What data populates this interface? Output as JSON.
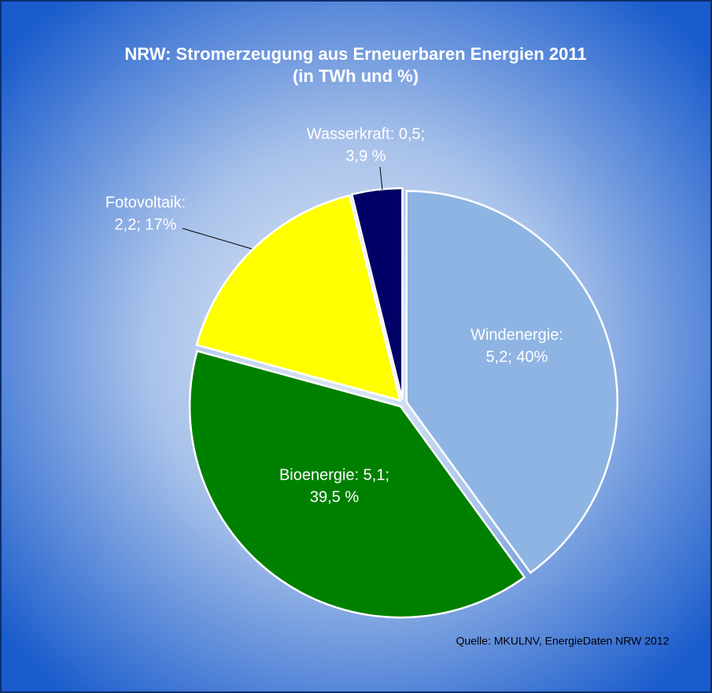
{
  "chart_data": {
    "type": "pie",
    "title": "NRW: Stromerzeugung aus Erneuerbaren Energien 2011",
    "subtitle": "(in TWh und %)",
    "values": [
      5.2,
      5.1,
      2.2,
      0.5
    ],
    "percentages": [
      40,
      39.5,
      17,
      3.9
    ],
    "value_labels": [
      [
        "Windenergie:",
        "5,2; 40%"
      ],
      [
        "Bioenergie: 5,1;",
        "39,5 %"
      ],
      [
        "Fotovoltaik:",
        "2,2; 17%"
      ],
      [
        "Wasserkraft: 0,5;",
        "3,9 %"
      ]
    ],
    "colors": [
      "#8eb4e3",
      "#008000",
      "#ffff00",
      "#000066"
    ],
    "source": "Quelle: MKULNV, EnergieDaten NRW 2012"
  }
}
